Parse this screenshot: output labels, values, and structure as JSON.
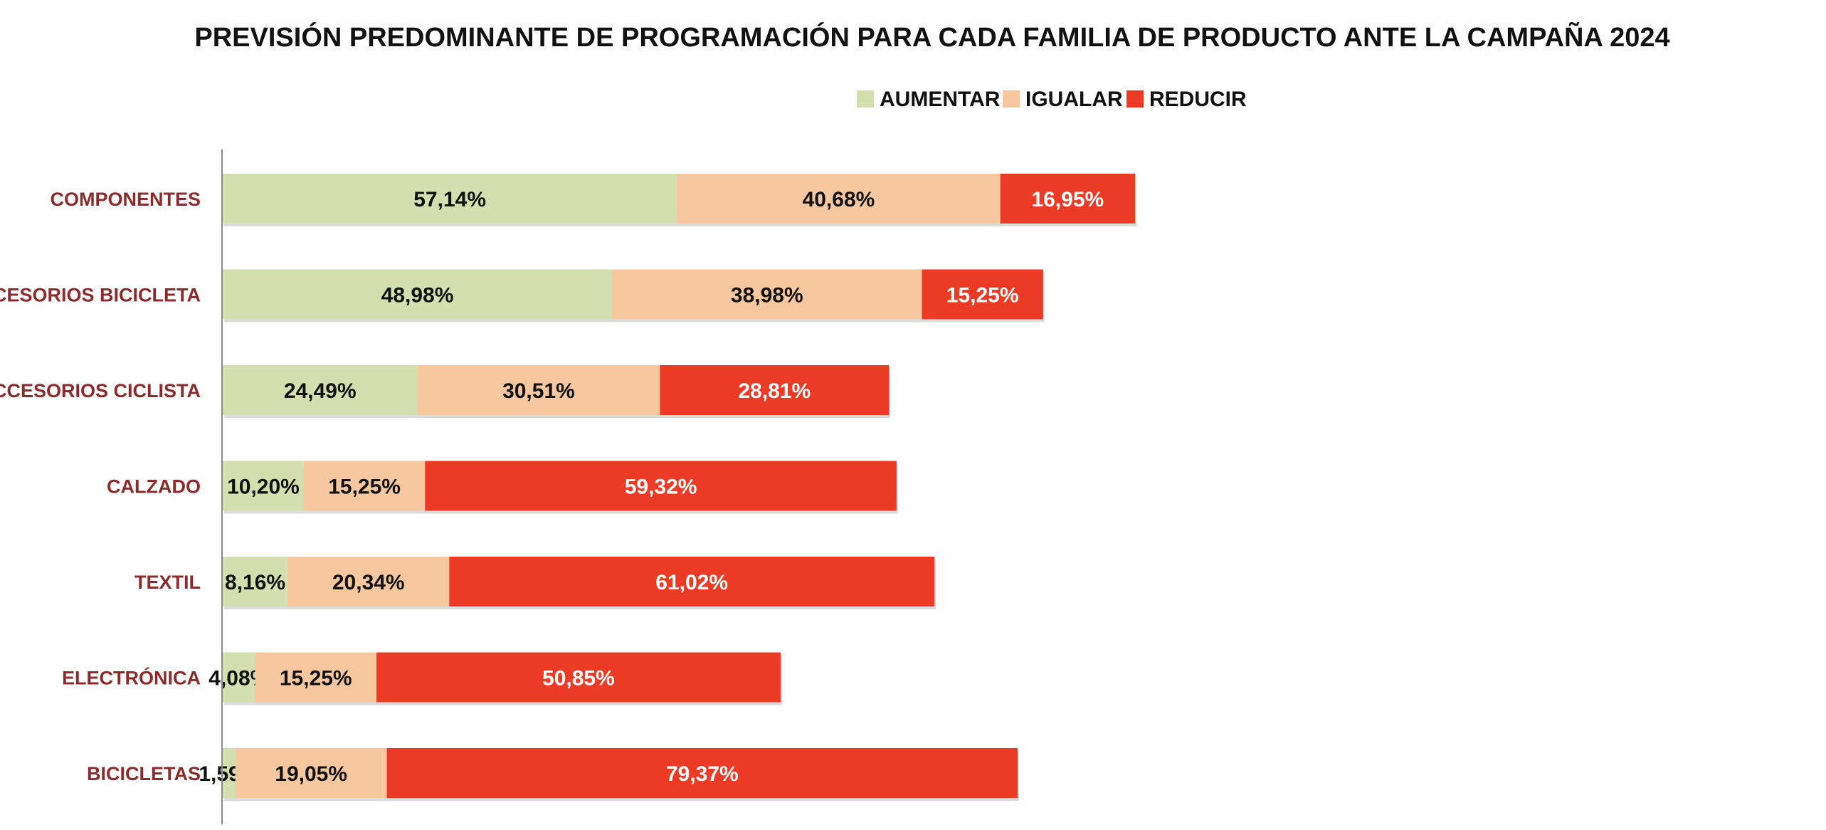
{
  "chart_data": {
    "type": "bar",
    "orientation": "horizontal",
    "stacked": true,
    "title": "PREVISIÓN PREDOMINANTE DE PROGRAMACIÓN PARA CADA FAMILIA DE PRODUCTO ANTE LA CAMPAÑA 2024",
    "xlabel": "",
    "ylabel": "",
    "grid": false,
    "legend_position": "top-center",
    "categories": [
      "COMPONENTES",
      "ACCESORIOS BICICLETA",
      "ACCESORIOS CICLISTA",
      "CALZADO",
      "TEXTIL",
      "ELECTRÓNICA",
      "BICICLETAS"
    ],
    "series": [
      {
        "name": "AUMENTAR",
        "color": "#d3dfaf",
        "label_color": "#111111",
        "values": [
          57.14,
          48.98,
          24.49,
          10.2,
          8.16,
          4.08,
          1.59
        ],
        "labels": [
          "57,14%",
          "48,98%",
          "24,49%",
          "10,20%",
          "8,16%",
          "4,08%",
          "1,59%"
        ]
      },
      {
        "name": "IGUALAR",
        "color": "#f7c8a0",
        "label_color": "#111111",
        "values": [
          40.68,
          38.98,
          30.51,
          15.25,
          20.34,
          15.25,
          19.05
        ],
        "labels": [
          "40,68%",
          "38,98%",
          "30,51%",
          "15,25%",
          "20,34%",
          "15,25%",
          "19,05%"
        ]
      },
      {
        "name": "REDUCIR",
        "color": "#ec3b24",
        "label_color": "#ffffff",
        "values": [
          16.95,
          15.25,
          28.81,
          59.32,
          61.02,
          50.85,
          79.37
        ],
        "labels": [
          "16,95%",
          "15,25%",
          "28,81%",
          "59,32%",
          "61,02%",
          "50,85%",
          "79,37%"
        ]
      }
    ]
  }
}
